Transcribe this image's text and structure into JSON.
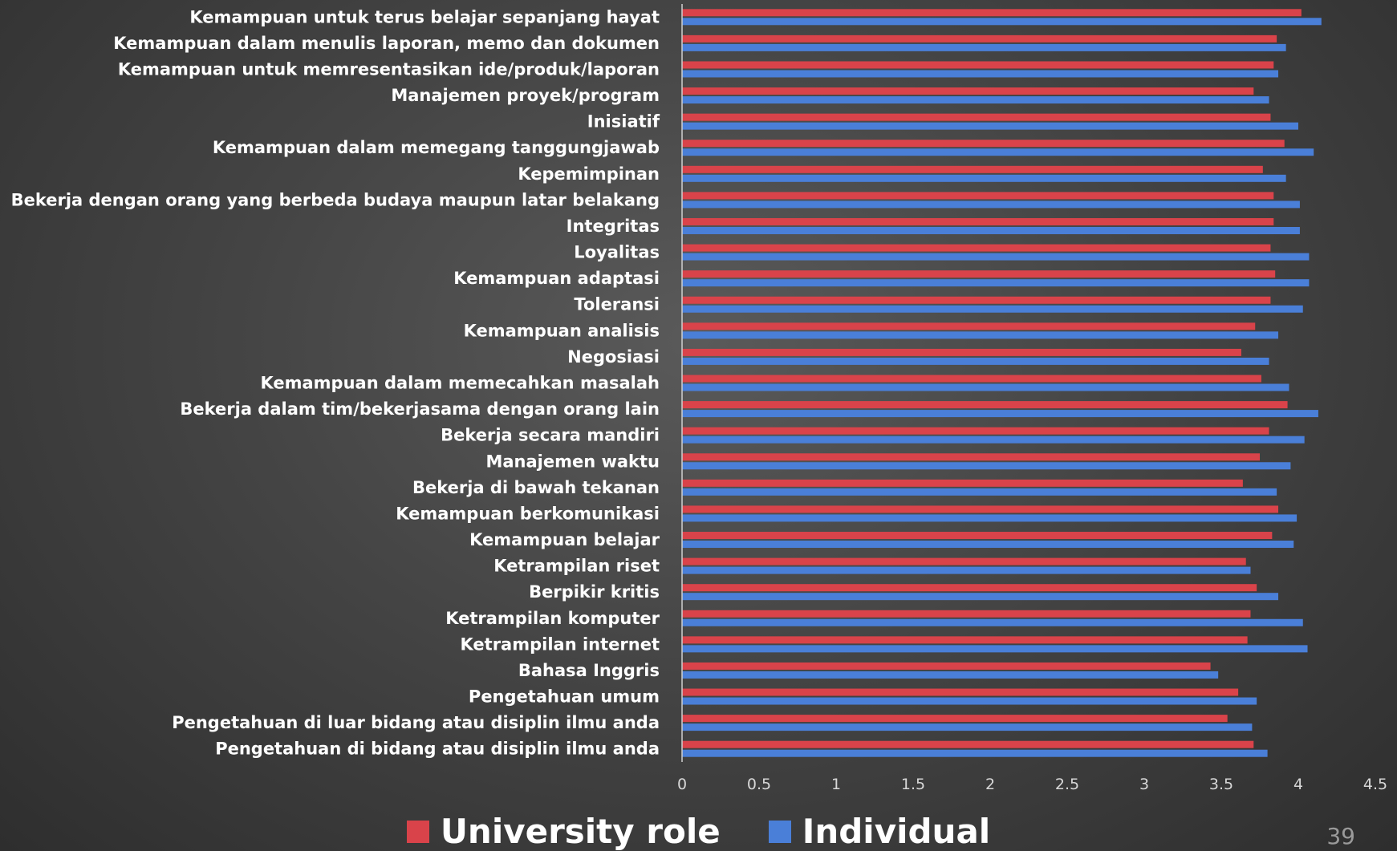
{
  "page_number": "39",
  "chart_data": {
    "type": "bar",
    "orientation": "horizontal",
    "title": "",
    "xlabel": "",
    "ylabel": "",
    "xlim": [
      0,
      4.5
    ],
    "x_ticks": [
      "0",
      "0.5",
      "1",
      "1.5",
      "2",
      "2.5",
      "3",
      "3.5",
      "4",
      "4.5"
    ],
    "grid": false,
    "legend_position": "bottom",
    "categories": [
      "Kemampuan untuk terus belajar sepanjang hayat",
      "Kemampuan dalam menulis laporan, memo dan dokumen",
      "Kemampuan untuk memresentasikan ide/produk/laporan",
      "Manajemen proyek/program",
      "Inisiatif",
      "Kemampuan dalam memegang tanggungjawab",
      "Kepemimpinan",
      "Bekerja dengan orang yang berbeda budaya maupun latar belakang",
      "Integritas",
      "Loyalitas",
      "Kemampuan adaptasi",
      "Toleransi",
      "Kemampuan analisis",
      "Negosiasi",
      "Kemampuan dalam memecahkan masalah",
      "Bekerja dalam tim/bekerjasama dengan orang lain",
      "Bekerja secara mandiri",
      "Manajemen waktu",
      "Bekerja di bawah tekanan",
      "Kemampuan berkomunikasi",
      "Kemampuan belajar",
      "Ketrampilan riset",
      "Berpikir kritis",
      "Ketrampilan komputer",
      "Ketrampilan internet",
      "Bahasa Inggris",
      "Pengetahuan umum",
      "Pengetahuan di luar bidang atau disiplin ilmu anda",
      "Pengetahuan di bidang atau disiplin ilmu anda"
    ],
    "series": [
      {
        "name": "University role",
        "color": "#d9434a",
        "values": [
          4.02,
          3.86,
          3.84,
          3.71,
          3.82,
          3.91,
          3.77,
          3.84,
          3.84,
          3.82,
          3.85,
          3.82,
          3.72,
          3.63,
          3.76,
          3.93,
          3.81,
          3.75,
          3.64,
          3.87,
          3.83,
          3.66,
          3.73,
          3.69,
          3.67,
          3.43,
          3.61,
          3.54,
          3.71
        ]
      },
      {
        "name": "Individual",
        "color": "#4a7fd8",
        "values": [
          4.15,
          3.92,
          3.87,
          3.81,
          4.0,
          4.1,
          3.92,
          4.01,
          4.01,
          4.07,
          4.07,
          4.03,
          3.87,
          3.81,
          3.94,
          4.13,
          4.04,
          3.95,
          3.86,
          3.99,
          3.97,
          3.69,
          3.87,
          4.03,
          4.06,
          3.48,
          3.73,
          3.7,
          3.8
        ]
      }
    ]
  }
}
